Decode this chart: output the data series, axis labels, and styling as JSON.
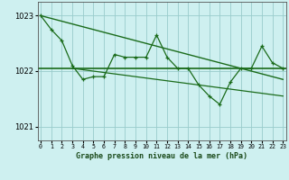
{
  "hours": [
    0,
    1,
    2,
    3,
    4,
    5,
    6,
    7,
    8,
    9,
    10,
    11,
    12,
    13,
    14,
    15,
    16,
    17,
    18,
    19,
    20,
    21,
    22,
    23
  ],
  "series1": [
    1023.0,
    1022.75,
    1022.55,
    1022.1,
    1021.85,
    1021.9,
    1021.9,
    1022.3,
    1022.25,
    1022.25,
    1022.25,
    1022.65,
    1022.25,
    1022.05,
    1022.05,
    1021.75,
    1021.55,
    1021.4,
    1021.8,
    1022.05,
    1022.05,
    1022.45,
    1022.15,
    1022.05
  ],
  "trend1_x": [
    0,
    23
  ],
  "trend1_y": [
    1023.0,
    1021.85
  ],
  "flat_y": 1022.05,
  "trend2_x": [
    3,
    23
  ],
  "trend2_y": [
    1022.05,
    1021.55
  ],
  "line_color": "#1a6b1a",
  "bg_color": "#cef0f0",
  "grid_color": "#99cccc",
  "xlabel": "Graphe pression niveau de la mer (hPa)",
  "ylim": [
    1020.75,
    1023.25
  ],
  "yticks": [
    1021,
    1022,
    1023
  ],
  "xlim": [
    -0.3,
    23.3
  ]
}
